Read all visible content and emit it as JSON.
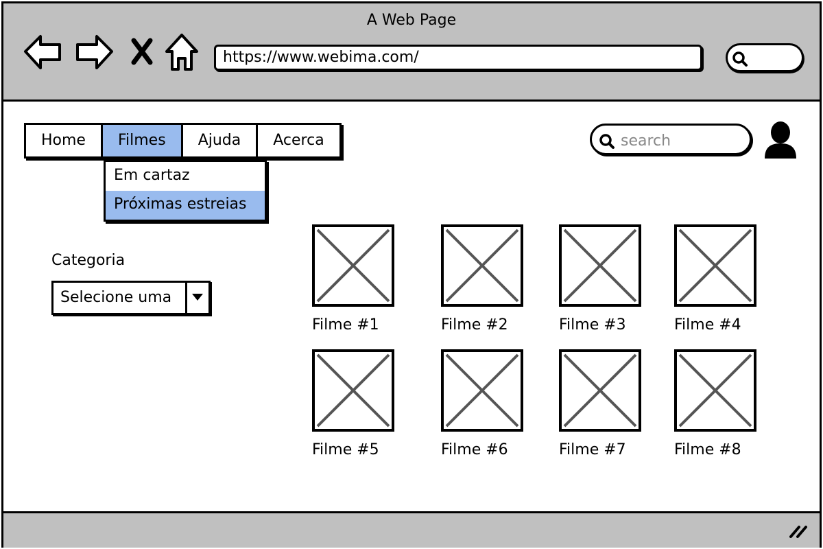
{
  "window": {
    "title": "A Web Page",
    "url": "https://www.webima.com/"
  },
  "menu": {
    "items": [
      {
        "label": "Home"
      },
      {
        "label": "Filmes"
      },
      {
        "label": "Ajuda"
      },
      {
        "label": "Acerca"
      }
    ],
    "active_index": 1
  },
  "dropdown": {
    "items": [
      {
        "label": "Em cartaz"
      },
      {
        "label": "Próximas estreias"
      }
    ],
    "highlighted_index": 1
  },
  "search": {
    "placeholder": "search"
  },
  "category": {
    "label": "Categoria",
    "selected": "Selecione uma"
  },
  "movies": [
    {
      "title": "Filme #1"
    },
    {
      "title": "Filme #2"
    },
    {
      "title": "Filme #3"
    },
    {
      "title": "Filme #4"
    },
    {
      "title": "Filme #5"
    },
    {
      "title": "Filme #6"
    },
    {
      "title": "Filme #7"
    },
    {
      "title": "Filme #8"
    }
  ],
  "colors": {
    "chrome": "#c0c0c0",
    "highlight": "#99bbee",
    "placeholder_x": "#555555"
  }
}
